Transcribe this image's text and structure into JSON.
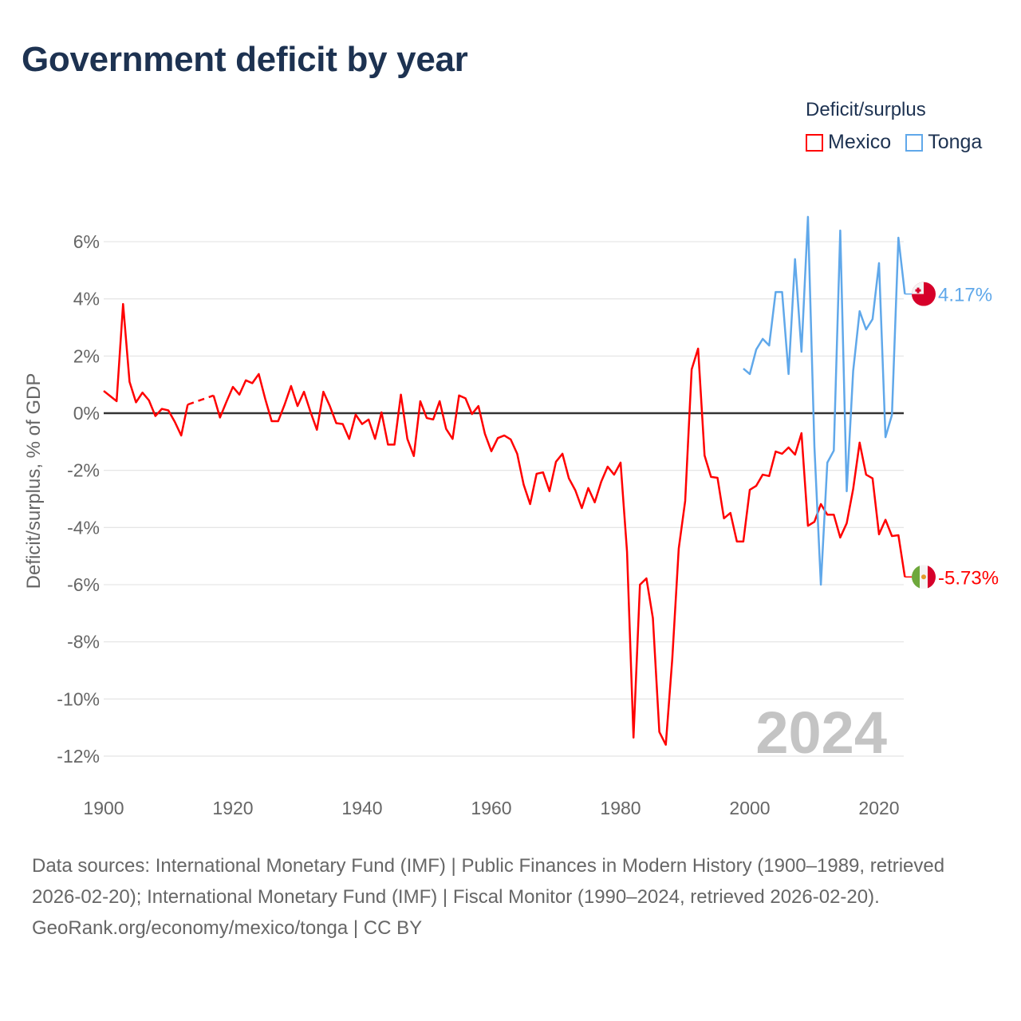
{
  "title": "Government deficit by year",
  "legend": {
    "title": "Deficit/surplus",
    "items": [
      {
        "name": "Mexico",
        "color": "#ff0000"
      },
      {
        "name": "Tonga",
        "color": "#60a8ea"
      }
    ]
  },
  "footer": {
    "sources": "Data sources: International Monetary Fund (IMF) | Public Finances in Modern History (1900–1989, retrieved 2026-02-20); International Monetary Fund (IMF) | Fiscal Monitor (1990–2024, retrieved 2026-02-20).",
    "credit": "GeoRank.org/economy/mexico/tonga | CC BY"
  },
  "chart_data": {
    "type": "line",
    "title": "Government deficit by year",
    "xlabel": "",
    "ylabel": "Deficit/surplus, % of GDP",
    "xlim": [
      1900,
      2024
    ],
    "ylim": [
      -13,
      7
    ],
    "xticks": [
      1900,
      1920,
      1940,
      1960,
      1980,
      2000,
      2020
    ],
    "yticks": [
      -12,
      -10,
      -8,
      -6,
      -4,
      -2,
      0,
      2,
      4,
      6
    ],
    "ytick_labels": [
      "-12%",
      "-10%",
      "-8%",
      "-6%",
      "-4%",
      "-2%",
      "0%",
      "2%",
      "4%",
      "6%"
    ],
    "grid": true,
    "legend_position": "top-right",
    "year_watermark": "2024",
    "series": [
      {
        "name": "Mexico",
        "color": "#ff0000",
        "start_year": 1900,
        "end_label": "-5.73%",
        "values": [
          0.78,
          0.6,
          0.42,
          3.82,
          1.1,
          0.38,
          0.72,
          0.45,
          -0.1,
          0.15,
          0.1,
          -0.3,
          -0.78,
          0.3,
          null,
          null,
          null,
          0.62,
          -0.15,
          0.4,
          0.92,
          0.65,
          1.15,
          1.05,
          1.37,
          0.5,
          -0.28,
          -0.28,
          0.3,
          0.95,
          0.25,
          0.75,
          0.05,
          -0.58,
          0.75,
          0.25,
          -0.35,
          -0.38,
          -0.9,
          -0.05,
          -0.38,
          -0.22,
          -0.9,
          0.03,
          -1.1,
          -1.1,
          0.65,
          -0.9,
          -1.5,
          0.42,
          -0.17,
          -0.22,
          0.42,
          -0.55,
          -0.9,
          0.62,
          0.52,
          -0.03,
          0.25,
          -0.72,
          -1.33,
          -0.87,
          -0.78,
          -0.92,
          -1.42,
          -2.5,
          -3.18,
          -2.12,
          -2.07,
          -2.73,
          -1.7,
          -1.42,
          -2.28,
          -2.7,
          -3.32,
          -2.62,
          -3.12,
          -2.4,
          -1.87,
          -2.15,
          -1.73,
          -4.85,
          -11.35,
          -6.0,
          -5.78,
          -7.17,
          -11.15,
          -11.6,
          -8.6,
          -4.74,
          -3.07,
          1.53,
          2.26,
          -1.48,
          -2.23,
          -2.26,
          -3.68,
          -3.49,
          -4.49,
          -4.49,
          -2.68,
          -2.54,
          -2.15,
          -2.2,
          -1.34,
          -1.42,
          -1.2,
          -1.45,
          -0.7,
          -3.94,
          -3.8,
          -3.18,
          -3.55,
          -3.55,
          -4.35,
          -3.85,
          -2.65,
          -1.03,
          -2.15,
          -2.28,
          -4.24,
          -3.73,
          -4.3,
          -4.27,
          -5.73
        ]
      },
      {
        "name": "Tonga",
        "color": "#60a8ea",
        "start_year": 1999,
        "end_label": "4.17%",
        "values": [
          1.56,
          1.37,
          2.23,
          2.6,
          2.37,
          4.24,
          4.24,
          1.37,
          5.39,
          2.15,
          6.87,
          -1.17,
          -6.0,
          -1.73,
          -1.31,
          6.39,
          -2.73,
          1.48,
          3.57,
          2.93,
          3.29,
          5.25,
          -0.84,
          -0.06,
          6.14,
          4.17
        ]
      }
    ]
  }
}
